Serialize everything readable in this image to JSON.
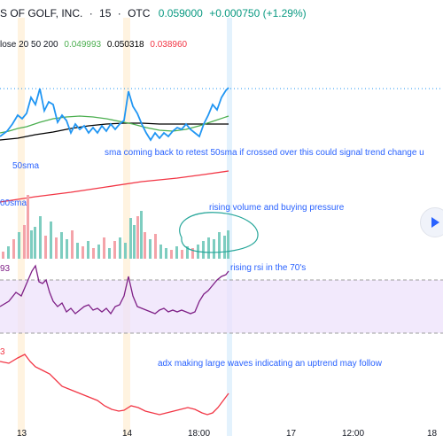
{
  "header": {
    "symbol": "S OF GOLF, INC.",
    "interval": "15",
    "exchange": "OTC",
    "separator": "·",
    "last_price": "0.059000",
    "change": "+0.000750 (+1.29%)"
  },
  "indicator_legend": {
    "label": "lose 20 50 200",
    "sma20": "0.049993",
    "sma50": "0.050318",
    "sma200": "0.038960"
  },
  "annotations": {
    "sma_note": "sma coming back to retest 50sma if crossed over this could signal trend change u",
    "sma50_label": "50sma",
    "volume_label": "00sma",
    "volume_note": "rising volume and buying pressure",
    "rsi_note": "rising rsi in the 70's",
    "rsi_value": "93",
    "adx_value": "3",
    "adx_note": "adx making large waves indicating an uptrend may follow"
  },
  "time_axis": [
    "13",
    "14",
    "18:00",
    "17",
    "12:00",
    "18"
  ],
  "colors": {
    "price": "#2196f3",
    "sma20": "#4caf50",
    "sma50": "#000000",
    "sma200": "#f23645",
    "rsi": "#7e1f86",
    "adx": "#f23645",
    "vol_up": "#7ecdc0",
    "vol_down": "#f4a3a9",
    "rsi_band": "#ede0fb",
    "annotation": "#2962ff",
    "highlight": "#ffe0b2"
  },
  "icons": {
    "play": "play-icon"
  }
}
